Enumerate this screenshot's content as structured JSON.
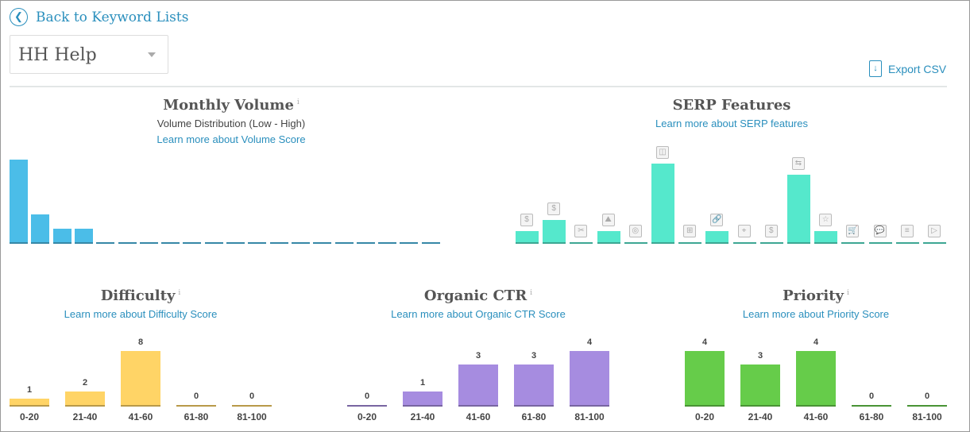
{
  "header": {
    "back_label": "Back to Keyword Lists",
    "list_select": "HH Help",
    "export_label": "Export CSV"
  },
  "colors": {
    "link": "#2a8fbd",
    "volume": "#4bbde8",
    "serp": "#55e8cc",
    "difficulty": "#ffd466",
    "ctr": "#a68ce0",
    "priority": "#66cc4a"
  },
  "chart_data": [
    {
      "id": "volume",
      "type": "bar",
      "title": "Monthly Volume",
      "info": "i",
      "subtitle": "Volume Distribution (Low - High)",
      "link": "Learn more about Volume Score",
      "values": [
        6,
        2,
        1,
        1,
        0,
        0,
        0,
        0,
        0,
        0,
        0,
        0,
        0,
        0,
        0,
        0,
        0,
        0,
        0,
        0
      ]
    },
    {
      "id": "serp",
      "type": "bar",
      "title": "SERP Features",
      "link": "Learn more about SERP features",
      "categories": [
        "shopping-ads-icon",
        "top-ads-icon",
        "snippet-icon",
        "image-pack-icon",
        "tweet-icon",
        "knowledge-panel-icon",
        "site-links-icon",
        "links-icon",
        "local-pack-icon",
        "local-ads-icon",
        "related-questions-icon",
        "reviews-icon",
        "shopping-results-icon",
        "discussions-icon",
        "news-icon",
        "video-icon"
      ],
      "glyphs": [
        "$",
        "$",
        "✂",
        "⛰",
        "◎",
        "◫",
        "⊞",
        "🔗",
        "⌖",
        "$",
        "⇆",
        "☆",
        "🛒",
        "💬",
        "≡",
        "▷"
      ],
      "values": [
        1,
        2,
        0,
        1,
        0,
        7,
        0,
        1,
        0,
        0,
        6,
        1,
        0,
        0,
        0,
        0
      ]
    },
    {
      "id": "difficulty",
      "type": "bar",
      "title": "Difficulty",
      "info": "i",
      "link": "Learn more about Difficulty Score",
      "categories": [
        "0-20",
        "21-40",
        "41-60",
        "61-80",
        "81-100"
      ],
      "values": [
        1,
        2,
        8,
        0,
        0
      ],
      "labels": [
        "1",
        "2",
        "8",
        "0",
        "0"
      ]
    },
    {
      "id": "ctr",
      "type": "bar",
      "title": "Organic CTR",
      "info": "i",
      "link": "Learn more about Organic CTR Score",
      "categories": [
        "0-20",
        "21-40",
        "41-60",
        "61-80",
        "81-100"
      ],
      "values": [
        0,
        1,
        3,
        3,
        4
      ],
      "labels": [
        "0",
        "1",
        "3",
        "3",
        "4"
      ]
    },
    {
      "id": "priority",
      "type": "bar",
      "title": "Priority",
      "info": "i",
      "link": "Learn more about Priority Score",
      "categories": [
        "0-20",
        "21-40",
        "41-60",
        "61-80",
        "81-100"
      ],
      "values": [
        4,
        3,
        4,
        0,
        0
      ],
      "labels": [
        "4",
        "3",
        "4",
        "0",
        "0"
      ]
    }
  ]
}
